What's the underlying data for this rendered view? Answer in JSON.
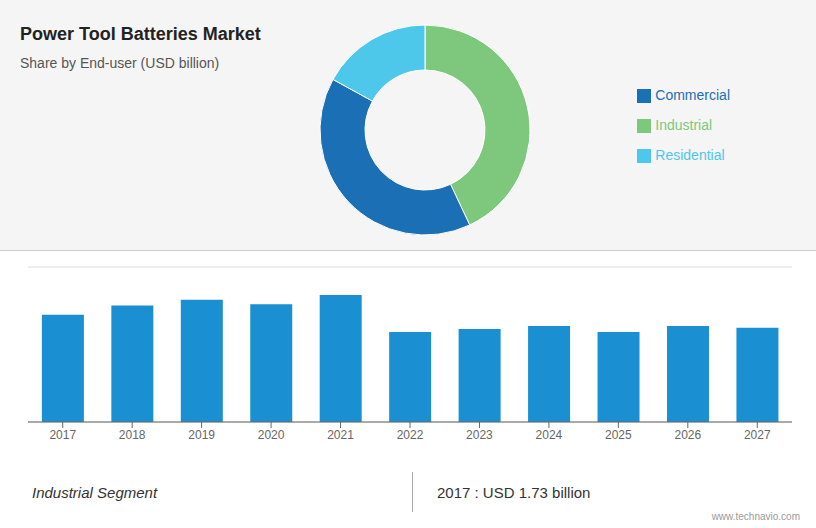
{
  "chart_data": [
    {
      "type": "donut",
      "title": "Power Tool Batteries Market",
      "subtitle": "Share by End-user (USD billion)",
      "categories": [
        "Industrial",
        "Commercial",
        "Residential"
      ],
      "values": [
        43,
        40,
        17
      ],
      "colors": [
        "#7dc87d",
        "#1b6fb5",
        "#4ec8ea"
      ],
      "legend": "right"
    },
    {
      "type": "bar",
      "categories": [
        "2017",
        "2018",
        "2019",
        "2020",
        "2021",
        "2022",
        "2023",
        "2024",
        "2025",
        "2026",
        "2027"
      ],
      "values": [
        1.73,
        1.88,
        1.97,
        1.9,
        2.05,
        1.45,
        1.5,
        1.55,
        1.45,
        1.55,
        1.52
      ],
      "color": "#1a8fd1",
      "ylim": [
        0,
        2.5
      ],
      "yticks": [
        0,
        0.5,
        1,
        1.5,
        2,
        2.5
      ],
      "grid": true,
      "tick_labels": "x",
      "annotations": [
        "Industrial Segment",
        "2017 : USD 1.73 billion",
        "www.technavio.com"
      ]
    }
  ]
}
